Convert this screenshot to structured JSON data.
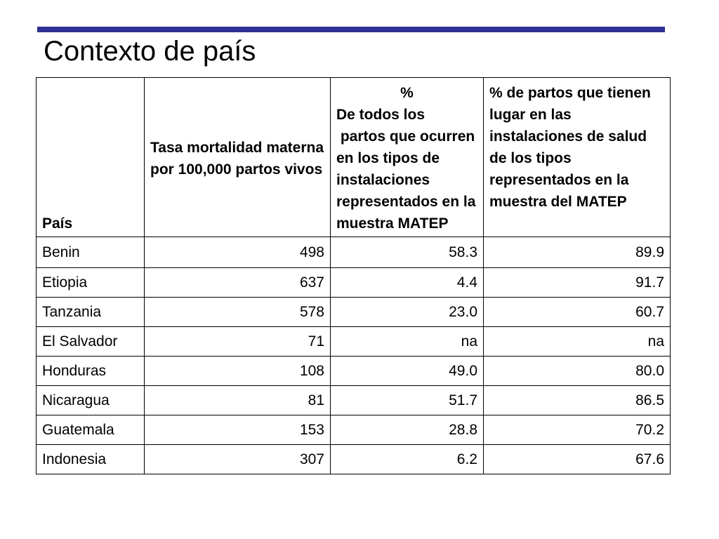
{
  "slide": {
    "title": "Contexto de país"
  },
  "table": {
    "headers": {
      "country": "País",
      "mortality": "Tasa mortalidad materna por 100,000 partos vivos",
      "pct_symbol": "%",
      "pct_text": "De todos los\n partos que ocurren en los tipos de instalaciones representados en la muestra MATEP",
      "pct_facilities": "% de partos que tienen lugar en las instalaciones de salud de los tipos representados en la muestra del MATEP"
    },
    "rows": [
      [
        "Benin",
        "498",
        "58.3",
        "89.9"
      ],
      [
        "Etiopia",
        "637",
        "4.4",
        "91.7"
      ],
      [
        "Tanzania",
        "578",
        "23.0",
        "60.7"
      ],
      [
        "El Salvador",
        "71",
        "na",
        "na"
      ],
      [
        "Honduras",
        "108",
        "49.0",
        "80.0"
      ],
      [
        "Nicaragua",
        "81",
        "51.7",
        "86.5"
      ],
      [
        "Guatemala",
        "153",
        "28.8",
        "70.2"
      ],
      [
        "Indonesia",
        "307",
        "6.2",
        "67.6"
      ]
    ]
  },
  "colors": {
    "accent_rule": "#2e3192",
    "text": "#000000",
    "background": "#ffffff"
  }
}
